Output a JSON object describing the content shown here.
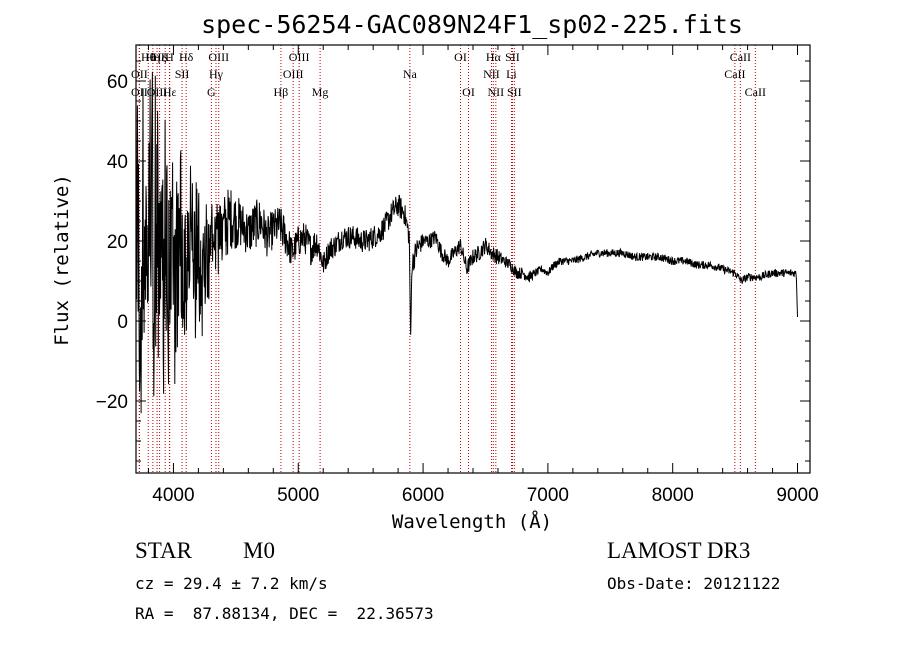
{
  "chart_data": {
    "type": "line",
    "title": "spec-56254-GAC089N24F1_sp02-225.fits",
    "xlabel": "Wavelength (Å)",
    "ylabel": "Flux (relative)",
    "xlim": [
      3700,
      9100
    ],
    "ylim": [
      -38,
      69
    ],
    "xticks": [
      4000,
      5000,
      6000,
      7000,
      8000,
      9000
    ],
    "yticks": [
      -20,
      0,
      20,
      40,
      60
    ],
    "ytick_labels": [
      "−20",
      "0",
      "20",
      "40",
      "60"
    ],
    "spectrum_anchor_x": [
      3700,
      3750,
      3800,
      3850,
      3900,
      3950,
      4000,
      4050,
      4100,
      4150,
      4200,
      4250,
      4300,
      4350,
      4400,
      4450,
      4500,
      4550,
      4600,
      4650,
      4700,
      4750,
      4800,
      4850,
      4900,
      4950,
      5000,
      5050,
      5100,
      5150,
      5200,
      5250,
      5300,
      5350,
      5400,
      5450,
      5500,
      5550,
      5600,
      5650,
      5700,
      5750,
      5800,
      5850,
      5890,
      5900,
      5910,
      5950,
      6000,
      6050,
      6100,
      6150,
      6200,
      6250,
      6300,
      6350,
      6400,
      6450,
      6500,
      6550,
      6600,
      6650,
      6700,
      6750,
      6800,
      6850,
      6900,
      6950,
      7000,
      7050,
      7100,
      7200,
      7300,
      7400,
      7500,
      7600,
      7700,
      7800,
      7900,
      8000,
      8100,
      8200,
      8300,
      8400,
      8500,
      8550,
      8600,
      8650,
      8700,
      8800,
      8900,
      8990,
      9000
    ],
    "spectrum_anchor_y": [
      20,
      20,
      20,
      20,
      20,
      18,
      17,
      16,
      15,
      14,
      15,
      14,
      17,
      21,
      22,
      26,
      25,
      24,
      22,
      24,
      25,
      21,
      23,
      24,
      21,
      17,
      20,
      21,
      18,
      20,
      14,
      18,
      19,
      21,
      21,
      21,
      20,
      20,
      21,
      22,
      24,
      27,
      29,
      27,
      21,
      -6,
      14,
      18,
      20,
      20,
      21,
      17,
      15,
      17,
      19,
      13,
      16,
      17,
      19,
      17,
      16,
      15,
      14,
      12,
      12,
      11,
      12,
      13,
      12,
      14,
      15,
      15,
      16,
      17,
      17,
      17,
      16,
      16,
      16,
      15,
      15,
      14,
      14,
      13,
      12,
      10,
      11,
      11,
      11,
      12,
      12,
      12,
      1
    ],
    "spectrum_noise_amplitude": [
      55,
      55,
      55,
      52,
      48,
      45,
      40,
      35,
      30,
      26,
      22,
      20,
      16,
      12,
      10,
      8,
      7,
      6,
      6,
      6,
      6,
      5,
      5,
      5,
      5,
      4,
      4,
      4,
      4,
      4,
      3,
      3,
      3,
      3,
      3,
      3,
      3,
      3,
      3,
      3,
      3,
      3,
      3,
      3,
      3,
      2,
      3,
      3,
      2,
      2,
      2,
      2,
      2,
      2,
      2,
      2,
      2,
      2,
      2,
      2,
      2,
      1.5,
      1.5,
      1.5,
      1.5,
      1.5,
      1,
      1,
      1,
      1,
      1,
      1,
      1,
      1,
      1,
      1,
      1,
      1,
      1,
      1,
      1,
      1,
      1,
      1,
      1,
      1,
      1,
      1,
      1,
      1,
      1,
      1,
      0
    ],
    "lines": [
      {
        "name": "OII",
        "wavelength": 3727,
        "row": 3
      },
      {
        "name": "Hθ",
        "wavelength": 3798,
        "row": 1
      },
      {
        "name": "OII",
        "wavelength": 3727,
        "row": 2
      },
      {
        "name": "Hη",
        "wavelength": 3835,
        "row": 1
      },
      {
        "name": "Hζ",
        "wavelength": 3889,
        "row": 1
      },
      {
        "name": "K",
        "wavelength": 3934,
        "row": 1
      },
      {
        "name": "H",
        "wavelength": 3968,
        "row": 1
      },
      {
        "name": "Hε",
        "wavelength": 3970,
        "row": 3
      },
      {
        "name": "OIII",
        "wavelength": 3869,
        "row": 3
      },
      {
        "name": "SII",
        "wavelength": 4069,
        "row": 2
      },
      {
        "name": "Hδ",
        "wavelength": 4102,
        "row": 1
      },
      {
        "name": "OIII",
        "wavelength": 4363,
        "row": 1
      },
      {
        "name": "Hγ",
        "wavelength": 4341,
        "row": 2
      },
      {
        "name": "G",
        "wavelength": 4304,
        "row": 3
      },
      {
        "name": "Hβ",
        "wavelength": 4861,
        "row": 3
      },
      {
        "name": "OIII",
        "wavelength": 4959,
        "row": 2
      },
      {
        "name": "OIII",
        "wavelength": 5007,
        "row": 1
      },
      {
        "name": "Mg",
        "wavelength": 5175,
        "row": 3
      },
      {
        "name": "Na",
        "wavelength": 5894,
        "row": 2
      },
      {
        "name": "OI",
        "wavelength": 6300,
        "row": 1
      },
      {
        "name": "OI",
        "wavelength": 6364,
        "row": 3
      },
      {
        "name": "Hα",
        "wavelength": 6563,
        "row": 1
      },
      {
        "name": "NII",
        "wavelength": 6548,
        "row": 2
      },
      {
        "name": "NII",
        "wavelength": 6583,
        "row": 3
      },
      {
        "name": "SII",
        "wavelength": 6716,
        "row": 1
      },
      {
        "name": "Li",
        "wavelength": 6708,
        "row": 2
      },
      {
        "name": "SII",
        "wavelength": 6731,
        "row": 3
      },
      {
        "name": "CaII",
        "wavelength": 8498,
        "row": 2
      },
      {
        "name": "CaII",
        "wavelength": 8542,
        "row": 1
      },
      {
        "name": "CaII",
        "wavelength": 8662,
        "row": 3
      }
    ]
  },
  "info": {
    "class_label": "STAR",
    "subclass": "M0",
    "survey": "LAMOST DR3",
    "cz": "cz = 29.4 ± 7.2 km/s",
    "obs_date": "Obs-Date: 20121122",
    "radec": "RA =  87.88134, DEC =  22.36573"
  },
  "colors": {
    "spectrum": "#000000",
    "line_marker": "#c00000",
    "axis": "#000000",
    "background": "#ffffff"
  }
}
